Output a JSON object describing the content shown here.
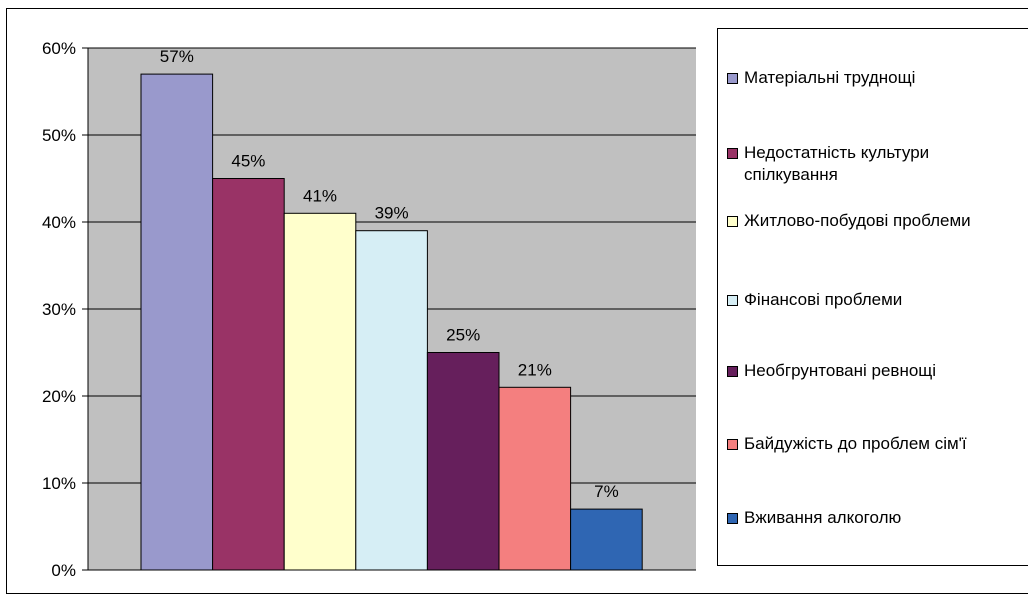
{
  "chart_data": {
    "type": "bar",
    "categories": [
      "Матеріальні труднощі",
      "Недостатність культури\nспілкування",
      "Житлово-побудові проблеми",
      "Фінансові проблеми",
      "Необгрунтовані ревнощі",
      "Байдужість до проблем сім'ї",
      "Вживання алкоголю"
    ],
    "values": [
      57,
      45,
      41,
      39,
      25,
      21,
      7
    ],
    "data_labels": [
      "57%",
      "45%",
      "41%",
      "39%",
      "25%",
      "21%",
      "7%"
    ],
    "colors": [
      "#9999cc",
      "#993366",
      "#ffffcc",
      "#d6eef5",
      "#661f5c",
      "#f47f7f",
      "#2f66b3"
    ],
    "y_ticks": [
      "0%",
      "10%",
      "20%",
      "30%",
      "40%",
      "50%",
      "60%"
    ],
    "ylim": [
      0,
      60
    ],
    "y_unit": "%",
    "title": "",
    "xlabel": "",
    "ylabel": "",
    "grid": true,
    "plot_background": "#c0c0c0",
    "legend_position": "right"
  }
}
